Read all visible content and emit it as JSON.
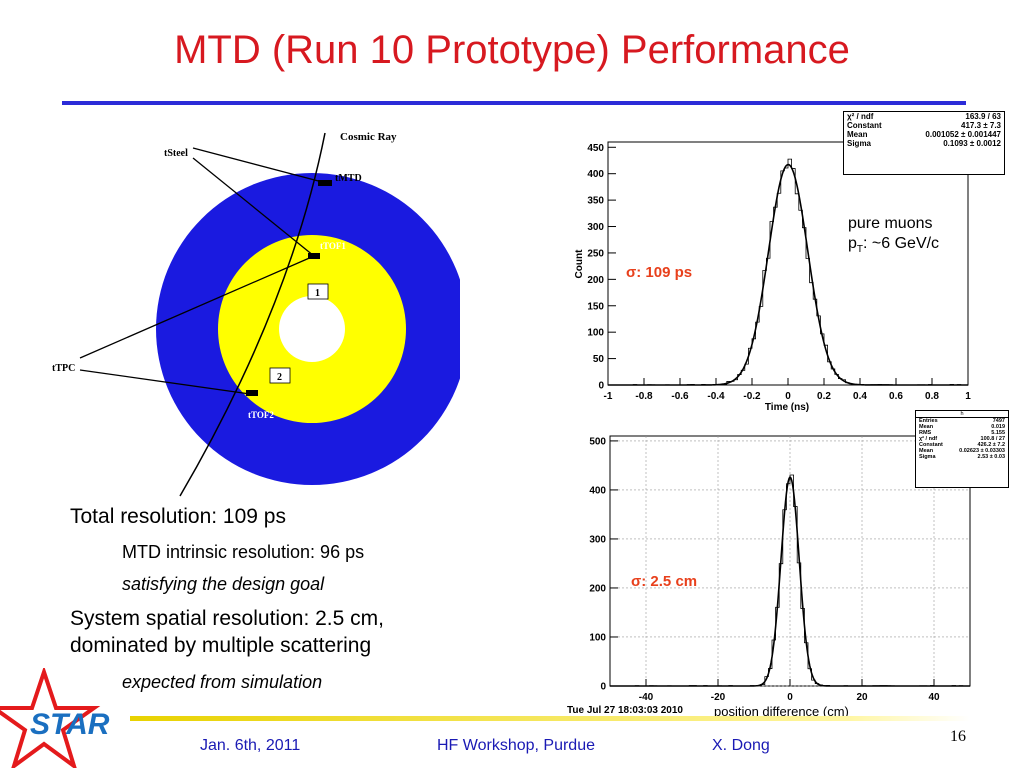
{
  "title": "MTD (Run 10 Prototype) Performance",
  "diagram": {
    "labels": {
      "cosmic_ray": "Cosmic Ray",
      "tsteel": "tSteel",
      "tmtd": "tMTD",
      "ttof1": "tTOF1",
      "ttof2": "tTOF2",
      "ttpc": "tTPC",
      "region1": "1",
      "region2": "2"
    },
    "colors": {
      "outer": "#1a1ae0",
      "inner": "#ffff00"
    }
  },
  "bullets": {
    "total": "Total resolution: 109 ps",
    "mtd_intrinsic": "MTD intrinsic resolution: 96 ps",
    "design_goal": "satisfying the design goal",
    "spatial_line1": "System spatial resolution: 2.5 cm,",
    "spatial_line2": "dominated by multiple scattering",
    "expected": "expected from simulation"
  },
  "chart_data": [
    {
      "type": "histogram",
      "xlabel": "Time (ns)",
      "ylabel": "Count",
      "xlim": [
        -1,
        1
      ],
      "ylim": [
        0,
        460
      ],
      "xticks": [
        "-1",
        "-0.8",
        "-0.6",
        "-0.4",
        "-0.2",
        "0",
        "0.2",
        "0.4",
        "0.6",
        "0.8",
        "1"
      ],
      "yticks": [
        "0",
        "50",
        "100",
        "150",
        "200",
        "250",
        "300",
        "350",
        "400",
        "450"
      ],
      "fit": {
        "type": "gaussian",
        "constant": 417.3,
        "mean": 0.001052,
        "sigma": 0.1093
      },
      "annotation": "σ: 109 ps",
      "note_line1": "pure muons",
      "note_p": "p",
      "note_sub": "T",
      "note_rest": ": ~6 GeV/c",
      "stats": [
        {
          "label": "χ² / ndf",
          "value": "163.9 / 63"
        },
        {
          "label": "Constant",
          "value": "417.3 ± 7.3"
        },
        {
          "label": "Mean",
          "value": "0.001052 ± 0.001447"
        },
        {
          "label": "Sigma",
          "value": "0.1093 ± 0.0012"
        }
      ]
    },
    {
      "type": "histogram",
      "xlabel": "position difference (cm)",
      "ylabel": "",
      "xlim": [
        -50,
        50
      ],
      "ylim": [
        0,
        510
      ],
      "xticks": [
        "-40",
        "-20",
        "0",
        "20",
        "40"
      ],
      "yticks": [
        "0",
        "100",
        "200",
        "300",
        "400",
        "500"
      ],
      "grid": true,
      "fit": {
        "type": "gaussian",
        "constant": 426.2,
        "mean": 0.02623,
        "sigma": 2.53
      },
      "annotation": "σ: 2.5 cm",
      "timestamp": "Tue Jul 27 18:03:03 2010",
      "stats_title": "h",
      "stats": [
        {
          "label": "Entries",
          "value": "7497"
        },
        {
          "label": "Mean",
          "value": "0.019"
        },
        {
          "label": "RMS",
          "value": "5.155"
        },
        {
          "label": "χ² / ndf",
          "value": "100.8 / 27"
        },
        {
          "label": "Constant",
          "value": "426.2 ± 7.2"
        },
        {
          "label": "Mean",
          "value": "0.02623 ± 0.03303"
        },
        {
          "label": "Sigma",
          "value": "2.53 ± 0.03"
        }
      ]
    }
  ],
  "footer": {
    "date": "Jan. 6th, 2011",
    "event": "HF Workshop, Purdue",
    "author": "X. Dong",
    "page": "16",
    "logo_text": "STAR"
  }
}
